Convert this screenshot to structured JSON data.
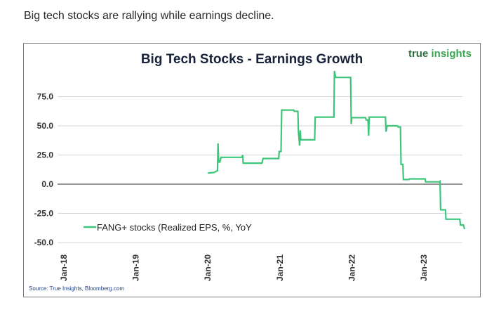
{
  "caption": "Big tech stocks are rallying while earnings decline.",
  "brand": {
    "part1": "true",
    "part2": "insights",
    "color": "#3aa650"
  },
  "source": "Source: True Insights, Bloomberg.com",
  "chart_data": {
    "type": "line",
    "title": "Big Tech Stocks - Earnings Growth",
    "xlabel": "",
    "ylabel": "",
    "ylim": [
      -50,
      100
    ],
    "yticks": [
      75.0,
      50.0,
      25.0,
      0.0,
      -25.0,
      -50.0
    ],
    "ytick_labels": [
      "75.0",
      "50.0",
      "25.0",
      "0.0",
      "-25.0",
      "-50.0"
    ],
    "xticks": [
      "Jan-18",
      "Jan-19",
      "Jan-20",
      "Jan-21",
      "Jan-22",
      "Jan-23"
    ],
    "x_unit": "months since Jan-18",
    "grid": true,
    "legend_position": "bottom-left",
    "series": [
      {
        "name": "FANG+ stocks (Realized EPS, %, YoY",
        "color": "#3ec57a",
        "points": [
          [
            24.0,
            9.5
          ],
          [
            25.0,
            10.0
          ],
          [
            25.6,
            11.5
          ],
          [
            25.7,
            35.0
          ],
          [
            25.8,
            19.0
          ],
          [
            26.0,
            19.0
          ],
          [
            26.2,
            23.0
          ],
          [
            29.7,
            23.0
          ],
          [
            29.8,
            25.0
          ],
          [
            29.9,
            18.0
          ],
          [
            33.0,
            18.0
          ],
          [
            33.2,
            22.0
          ],
          [
            35.8,
            22.0
          ],
          [
            35.9,
            28.0
          ],
          [
            36.2,
            28.0
          ],
          [
            36.3,
            63.5
          ],
          [
            38.3,
            63.5
          ],
          [
            38.4,
            62.5
          ],
          [
            39.0,
            62.5
          ],
          [
            39.1,
            45.0
          ],
          [
            39.3,
            33.0
          ],
          [
            39.4,
            46.0
          ],
          [
            39.5,
            38.0
          ],
          [
            41.8,
            38.0
          ],
          [
            41.9,
            57.5
          ],
          [
            45.0,
            57.5
          ],
          [
            45.1,
            97.0
          ],
          [
            45.3,
            91.5
          ],
          [
            47.8,
            91.5
          ],
          [
            47.9,
            51.5
          ],
          [
            48.0,
            57.0
          ],
          [
            50.3,
            57.0
          ],
          [
            50.4,
            55.0
          ],
          [
            50.7,
            55.0
          ],
          [
            50.8,
            41.5
          ],
          [
            50.9,
            57.5
          ],
          [
            53.6,
            57.5
          ],
          [
            53.7,
            45.0
          ],
          [
            53.9,
            50.0
          ],
          [
            55.6,
            50.0
          ],
          [
            55.7,
            49.0
          ],
          [
            56.1,
            49.0
          ],
          [
            56.2,
            17.0
          ],
          [
            56.5,
            17.0
          ],
          [
            56.6,
            4.0
          ],
          [
            57.5,
            4.0
          ],
          [
            57.6,
            4.5
          ],
          [
            60.2,
            4.5
          ],
          [
            60.3,
            2.0
          ],
          [
            62.6,
            2.0
          ],
          [
            62.7,
            2.5
          ],
          [
            62.8,
            -22.0
          ],
          [
            63.6,
            -22.0
          ],
          [
            63.7,
            -30.0
          ],
          [
            66.0,
            -30.0
          ],
          [
            66.1,
            -35.0
          ],
          [
            66.6,
            -35.0
          ],
          [
            66.8,
            -38.5
          ]
        ]
      }
    ]
  }
}
